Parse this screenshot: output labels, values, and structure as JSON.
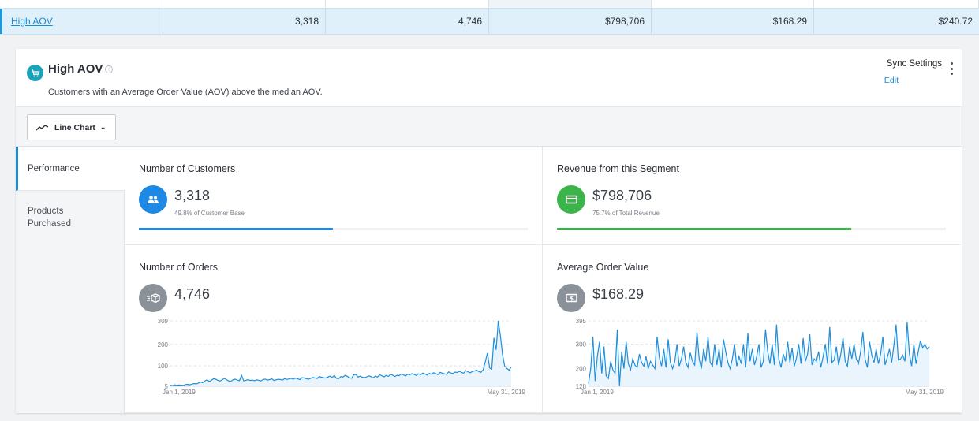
{
  "table_row": {
    "name": "High AOV",
    "cells": [
      "3,318",
      "4,746",
      "$798,706",
      "$168.29",
      "$240.72"
    ]
  },
  "segment": {
    "title": "High AOV",
    "description": "Customers with an Average Order Value (AOV) above the median AOV.",
    "sync_label": "Sync Settings",
    "edit_label": "Edit"
  },
  "toolbar": {
    "chart_type": "Line Chart"
  },
  "tabs": [
    {
      "label": "Performance",
      "active": true
    },
    {
      "label": "Products Purchased",
      "active": false
    }
  ],
  "metrics": {
    "customers": {
      "title": "Number of Customers",
      "value": "3,318",
      "sub": "49.8% of Customer Base",
      "share": 0.498,
      "color": "#1e88e5",
      "icon": "people-icon"
    },
    "revenue": {
      "title": "Revenue from this Segment",
      "value": "$798,706",
      "sub": "75.7% of Total Revenue",
      "share": 0.757,
      "color": "#3bb54a",
      "icon": "card-icon"
    },
    "orders": {
      "title": "Number of Orders",
      "value": "4,746",
      "color": "#8a9199",
      "icon": "box-icon"
    },
    "aov": {
      "title": "Average Order Value",
      "value": "$168.29",
      "color": "#8a9199",
      "icon": "dollar-icon"
    }
  },
  "chart_data": [
    {
      "type": "line",
      "yticks": [
        "309",
        "200",
        "100",
        "5"
      ],
      "ylim": [
        5,
        309
      ],
      "x_start_label": "Jan 1, 2019",
      "x_end_label": "May 31, 2019",
      "line_color": "#1e8fdb",
      "values": [
        10,
        8,
        12,
        9,
        11,
        10,
        9,
        13,
        14,
        12,
        15,
        18,
        16,
        20,
        25,
        22,
        30,
        35,
        28,
        32,
        40,
        38,
        33,
        29,
        35,
        42,
        36,
        30,
        28,
        35,
        38,
        34,
        31,
        56,
        30,
        33,
        36,
        32,
        34,
        31,
        35,
        33,
        30,
        37,
        38,
        34,
        36,
        40,
        32,
        35,
        38,
        36,
        34,
        41,
        37,
        39,
        42,
        38,
        43,
        40,
        36,
        45,
        44,
        40,
        38,
        42,
        46,
        44,
        41,
        50,
        47,
        45,
        43,
        48,
        52,
        46,
        55,
        42,
        40,
        50,
        48,
        56,
        51,
        45,
        42,
        58,
        60,
        48,
        52,
        47,
        45,
        49,
        53,
        50,
        44,
        52,
        48,
        58,
        54,
        49,
        55,
        51,
        60,
        57,
        50,
        56,
        54,
        62,
        58,
        53,
        61,
        58,
        64,
        60,
        55,
        63,
        59,
        66,
        62,
        57,
        65,
        61,
        68,
        64,
        59,
        70,
        66,
        63,
        60,
        72,
        67,
        64,
        71,
        69,
        75,
        70,
        66,
        78,
        72,
        68,
        74,
        76,
        80,
        73,
        70,
        82,
        120,
        160,
        90,
        85,
        230,
        175,
        309,
        240,
        150,
        98,
        88,
        80,
        95
      ]
    },
    {
      "type": "line",
      "yticks": [
        "395",
        "300",
        "200",
        "128"
      ],
      "ylim": [
        128,
        395
      ],
      "x_start_label": "Jan 1, 2019",
      "x_end_label": "May 31, 2019",
      "line_color": "#1e8fdb",
      "values": [
        140,
        200,
        330,
        150,
        250,
        310,
        180,
        290,
        170,
        160,
        230,
        195,
        180,
        360,
        130,
        270,
        200,
        310,
        220,
        195,
        240,
        215,
        205,
        260,
        225,
        210,
        250,
        200,
        230,
        215,
        200,
        330,
        245,
        210,
        280,
        205,
        320,
        225,
        200,
        230,
        300,
        210,
        240,
        290,
        225,
        205,
        265,
        230,
        215,
        350,
        240,
        200,
        280,
        230,
        330,
        225,
        210,
        300,
        215,
        280,
        205,
        320,
        270,
        225,
        200,
        240,
        300,
        210,
        250,
        220,
        300,
        205,
        345,
        230,
        280,
        215,
        250,
        300,
        205,
        230,
        360,
        270,
        220,
        300,
        215,
        380,
        240,
        205,
        260,
        230,
        310,
        225,
        285,
        210,
        245,
        300,
        220,
        325,
        230,
        260,
        340,
        215,
        240,
        230,
        270,
        205,
        250,
        300,
        220,
        370,
        225,
        235,
        290,
        215,
        260,
        325,
        230,
        210,
        290,
        240,
        300,
        240,
        220,
        270,
        350,
        240,
        205,
        310,
        255,
        225,
        280,
        220,
        260,
        330,
        215,
        245,
        280,
        225,
        295,
        380,
        235,
        240,
        255,
        230,
        390,
        260,
        210,
        300,
        220,
        270,
        315,
        285,
        300,
        280,
        290
      ]
    }
  ]
}
